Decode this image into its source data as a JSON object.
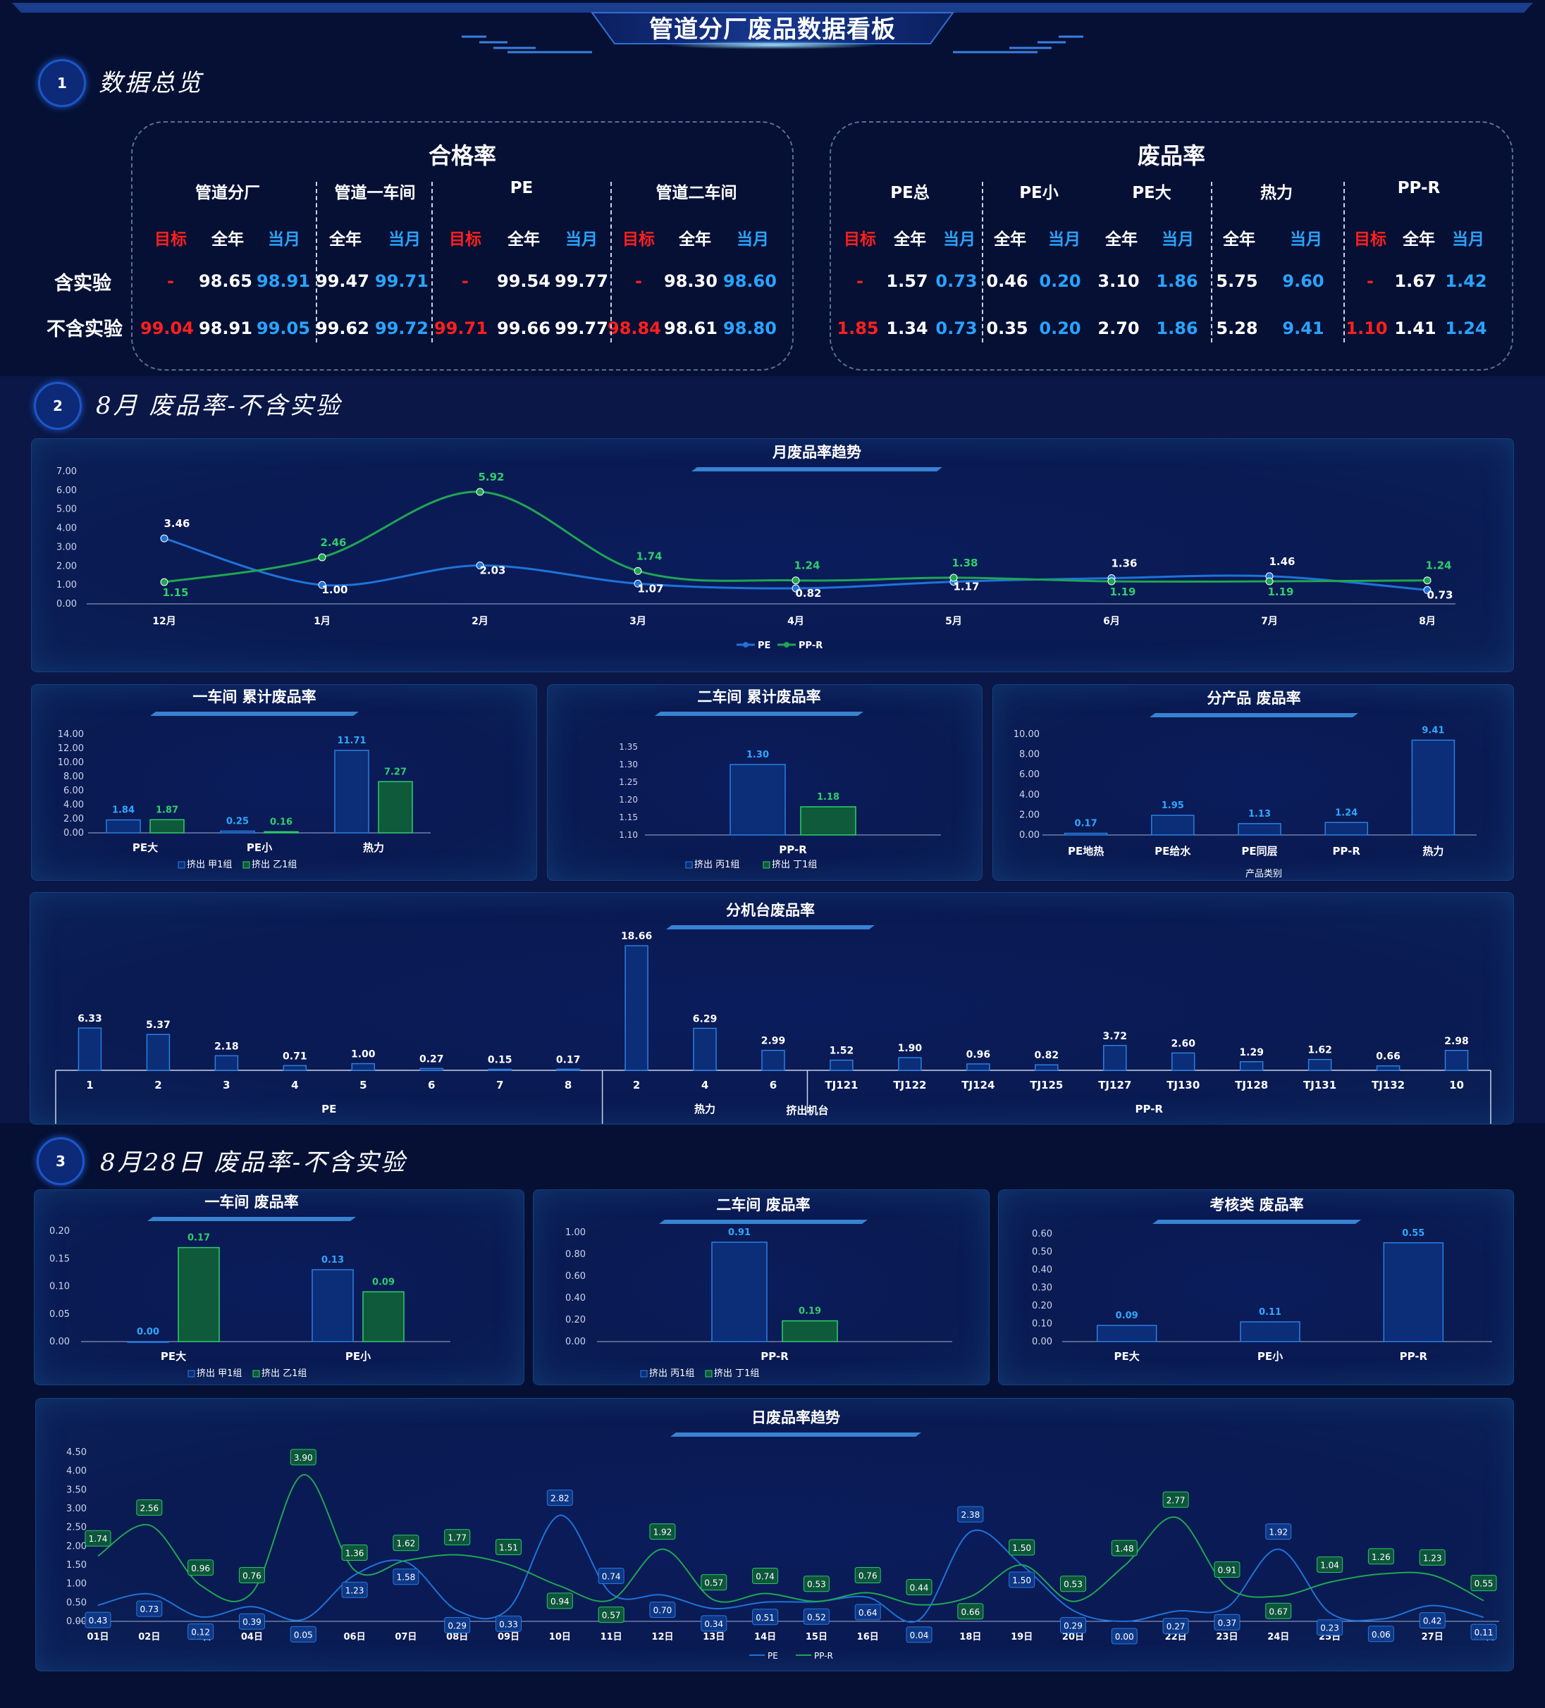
{
  "header": {
    "title": "管道分厂废品数据看板"
  },
  "sections": [
    {
      "num": "1",
      "title": "数据总览"
    },
    {
      "num": "2",
      "title": "8月 废品率-不含实验"
    },
    {
      "num": "3",
      "title": "8月28日 废品率-不含实验"
    }
  ],
  "colors": {
    "pe": "#1e73d8",
    "ppr": "#1fa652",
    "target": "#ff1f1f",
    "month": "#29a3ff",
    "year": "#ffffff"
  },
  "overview": {
    "row_labels": [
      "含实验",
      "不含实验"
    ],
    "pass_rate": {
      "title": "合格率",
      "groups": [
        {
          "name": "管道分厂",
          "cols": [
            "目标",
            "全年",
            "当月"
          ],
          "rows": [
            [
              "-",
              "98.65",
              "98.91"
            ],
            [
              "99.04",
              "98.91",
              "99.05"
            ]
          ]
        },
        {
          "name": "管道一车间",
          "cols": [
            "全年",
            "当月"
          ],
          "rows": [
            [
              "99.47",
              "99.71"
            ],
            [
              "99.62",
              "99.72"
            ]
          ]
        },
        {
          "name": "PE",
          "cols": [
            "目标",
            "全年",
            "当月"
          ],
          "rows": [
            [
              "-",
              "99.54",
              "99.77"
            ],
            [
              "99.71",
              "99.66",
              "99.77"
            ]
          ]
        },
        {
          "name": "管道二车间",
          "cols": [
            "目标",
            "全年",
            "当月"
          ],
          "rows": [
            [
              "-",
              "98.30",
              "98.60"
            ],
            [
              "98.84",
              "98.61",
              "98.80"
            ]
          ]
        }
      ]
    },
    "scrap_rate": {
      "title": "废品率",
      "groups": [
        {
          "name": "PE总",
          "cols": [
            "目标",
            "全年",
            "当月"
          ],
          "rows": [
            [
              "-",
              "1.57",
              "0.73"
            ],
            [
              "1.85",
              "1.34",
              "0.73"
            ]
          ]
        },
        {
          "name": "PE小",
          "cols": [
            "全年",
            "当月"
          ],
          "rows": [
            [
              "0.46",
              "0.20"
            ],
            [
              "0.35",
              "0.20"
            ]
          ]
        },
        {
          "name": "PE大",
          "cols": [
            "全年",
            "当月"
          ],
          "rows": [
            [
              "3.10",
              "1.86"
            ],
            [
              "2.70",
              "1.86"
            ]
          ]
        },
        {
          "name": "热力",
          "cols": [
            "全年",
            "当月"
          ],
          "rows": [
            [
              "5.75",
              "9.60"
            ],
            [
              "5.28",
              "9.41"
            ]
          ]
        },
        {
          "name": "PP-R",
          "cols": [
            "目标",
            "全年",
            "当月"
          ],
          "rows": [
            [
              "-",
              "1.67",
              "1.42"
            ],
            [
              "1.10",
              "1.41",
              "1.24"
            ]
          ]
        }
      ]
    }
  },
  "chart_data": [
    {
      "id": "monthly-trend",
      "type": "line",
      "title": "月废品率趋势",
      "categories": [
        "12月",
        "1月",
        "2月",
        "3月",
        "4月",
        "5月",
        "6月",
        "7月",
        "8月"
      ],
      "series": [
        {
          "name": "PE",
          "values": [
            3.46,
            1.0,
            2.03,
            1.07,
            0.82,
            1.17,
            1.36,
            1.46,
            0.73
          ]
        },
        {
          "name": "PP-R",
          "values": [
            1.15,
            2.46,
            5.92,
            1.74,
            1.24,
            1.38,
            1.19,
            1.19,
            1.24
          ]
        }
      ],
      "yticks": [
        "0.00",
        "1.00",
        "2.00",
        "3.00",
        "4.00",
        "5.00",
        "6.00",
        "7.00"
      ],
      "ylim": [
        0,
        7
      ]
    },
    {
      "id": "ws1-cum",
      "type": "bar",
      "title": "一车间 累计废品率",
      "categories": [
        "PE大",
        "PE小",
        "热力"
      ],
      "series": [
        {
          "name": "挤出 甲1组",
          "values": [
            1.84,
            0.25,
            11.71
          ]
        },
        {
          "name": "挤出 乙1组",
          "values": [
            1.87,
            0.16,
            7.27
          ]
        }
      ],
      "yticks": [
        "0.00",
        "2.00",
        "4.00",
        "6.00",
        "8.00",
        "10.00",
        "12.00",
        "14.00"
      ],
      "ylim": [
        0,
        14
      ]
    },
    {
      "id": "ws2-cum",
      "type": "bar",
      "title": "二车间 累计废品率",
      "categories": [
        "PP-R"
      ],
      "series": [
        {
          "name": "挤出 丙1组",
          "values": [
            1.3
          ]
        },
        {
          "name": "挤出 丁1组",
          "values": [
            1.18
          ]
        }
      ],
      "yticks": [
        "1.10",
        "1.15",
        "1.20",
        "1.25",
        "1.30",
        "1.35"
      ],
      "ylim": [
        1.1,
        1.35
      ]
    },
    {
      "id": "product",
      "type": "bar",
      "title": "分产品 废品率",
      "categories": [
        "PE地热",
        "PE给水",
        "PE同层",
        "PP-R",
        "热力"
      ],
      "series": [
        {
          "values": [
            0.17,
            1.95,
            1.13,
            1.24,
            9.41
          ]
        }
      ],
      "xlabel": "产品类别",
      "yticks": [
        "0.00",
        "2.00",
        "4.00",
        "6.00",
        "8.00",
        "10.00"
      ],
      "ylim": [
        0,
        10
      ]
    },
    {
      "id": "machine",
      "type": "bar",
      "title": "分机台废品率",
      "categories": [
        "1",
        "2",
        "3",
        "4",
        "5",
        "6",
        "7",
        "8",
        "2",
        "4",
        "6",
        "TJ121",
        "TJ122",
        "TJ124",
        "TJ125",
        "TJ127",
        "TJ130",
        "TJ128",
        "TJ131",
        "TJ132",
        "10"
      ],
      "series": [
        {
          "values": [
            6.33,
            5.37,
            2.18,
            0.71,
            1.0,
            0.27,
            0.15,
            0.17,
            18.66,
            6.29,
            2.99,
            1.52,
            1.9,
            0.96,
            0.82,
            3.72,
            2.6,
            1.29,
            1.62,
            0.66,
            2.98
          ]
        }
      ],
      "groups": [
        "PE",
        "热力",
        "PP-R"
      ],
      "xlabel": "挤出机台",
      "ylim": [
        0,
        19
      ]
    },
    {
      "id": "ws1-day",
      "type": "bar",
      "title": "一车间 废品率",
      "categories": [
        "PE大",
        "PE小"
      ],
      "series": [
        {
          "name": "挤出 甲1组",
          "values": [
            0.0,
            0.13
          ]
        },
        {
          "name": "挤出 乙1组",
          "values": [
            0.17,
            0.09
          ]
        }
      ],
      "yticks": [
        "0.00",
        "0.05",
        "0.10",
        "0.15",
        "0.20"
      ],
      "ylim": [
        0,
        0.2
      ]
    },
    {
      "id": "ws2-day",
      "type": "bar",
      "title": "二车间 废品率",
      "categories": [
        "PP-R"
      ],
      "series": [
        {
          "name": "挤出 丙1组",
          "values": [
            0.91
          ]
        },
        {
          "name": "挤出 丁1组",
          "values": [
            0.19
          ]
        }
      ],
      "yticks": [
        "0.00",
        "0.20",
        "0.40",
        "0.60",
        "0.80",
        "1.00"
      ],
      "ylim": [
        0,
        1.0
      ]
    },
    {
      "id": "assess",
      "type": "bar",
      "title": "考核类 废品率",
      "categories": [
        "PE大",
        "PE小",
        "PP-R"
      ],
      "series": [
        {
          "values": [
            0.09,
            0.11,
            0.55
          ]
        }
      ],
      "yticks": [
        "0.00",
        "0.10",
        "0.20",
        "0.30",
        "0.40",
        "0.50",
        "0.60"
      ],
      "ylim": [
        0,
        0.6
      ]
    },
    {
      "id": "daily-trend",
      "type": "line",
      "title": "日废品率趋势",
      "categories": [
        "01日",
        "02日",
        "03日",
        "04日",
        "05日",
        "06日",
        "07日",
        "08日",
        "09日",
        "10日",
        "11日",
        "12日",
        "13日",
        "14日",
        "15日",
        "16日",
        "17日",
        "18日",
        "19日",
        "20日",
        "21日",
        "22日",
        "23日",
        "24日",
        "25日",
        "26日",
        "27日",
        "28日"
      ],
      "series": [
        {
          "name": "PE",
          "values": [
            0.43,
            0.73,
            0.12,
            0.39,
            0.05,
            1.23,
            1.58,
            0.29,
            0.33,
            2.82,
            0.74,
            0.7,
            0.34,
            0.51,
            0.52,
            0.64,
            0.04,
            2.38,
            1.5,
            0.29,
            0.0,
            0.27,
            0.37,
            1.92,
            0.23,
            0.06,
            0.42,
            0.11
          ]
        },
        {
          "name": "PP-R",
          "values": [
            1.74,
            2.56,
            0.96,
            0.76,
            3.9,
            1.36,
            1.62,
            1.77,
            1.51,
            0.94,
            0.57,
            1.92,
            0.57,
            0.74,
            0.53,
            0.76,
            0.44,
            0.66,
            1.5,
            0.53,
            1.48,
            2.77,
            0.91,
            0.67,
            1.04,
            1.26,
            1.23,
            0.55
          ]
        }
      ],
      "yticks": [
        "0.00",
        "0.50",
        "1.00",
        "1.50",
        "2.00",
        "2.50",
        "3.00",
        "3.50",
        "4.00",
        "4.50"
      ],
      "ylim": [
        0,
        4.5
      ]
    }
  ]
}
